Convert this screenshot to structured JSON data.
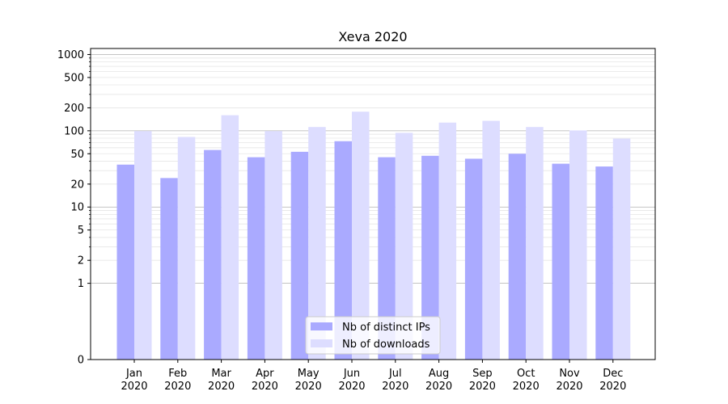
{
  "chart_data": {
    "type": "bar",
    "title": "Xeva 2020",
    "xlabel": "",
    "ylabel": "",
    "yscale": "symlog",
    "ylim": [
      0,
      1200
    ],
    "yticks": [
      0,
      1,
      2,
      5,
      10,
      20,
      50,
      100,
      200,
      500,
      1000
    ],
    "ytick_labels": [
      "0",
      "1",
      "2",
      "5",
      "10",
      "20",
      "50",
      "100",
      "200",
      "500",
      "1000"
    ],
    "grid": true,
    "legend_position": "bottom-center",
    "categories": [
      [
        "Jan",
        "2020"
      ],
      [
        "Feb",
        "2020"
      ],
      [
        "Mar",
        "2020"
      ],
      [
        "Apr",
        "2020"
      ],
      [
        "May",
        "2020"
      ],
      [
        "Jun",
        "2020"
      ],
      [
        "Jul",
        "2020"
      ],
      [
        "Aug",
        "2020"
      ],
      [
        "Sep",
        "2020"
      ],
      [
        "Oct",
        "2020"
      ],
      [
        "Nov",
        "2020"
      ],
      [
        "Dec",
        "2020"
      ]
    ],
    "series": [
      {
        "name": "Nb of distinct IPs",
        "color": "#aaaaff",
        "values": [
          36,
          24,
          56,
          45,
          53,
          73,
          45,
          47,
          43,
          50,
          37,
          34
        ]
      },
      {
        "name": "Nb of downloads",
        "color": "#ddddff",
        "values": [
          99,
          83,
          160,
          99,
          112,
          178,
          94,
          128,
          135,
          112,
          101,
          79
        ]
      }
    ]
  }
}
